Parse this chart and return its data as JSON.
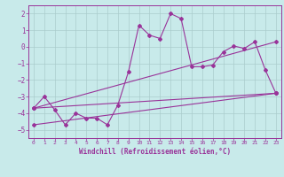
{
  "xlabel": "Windchill (Refroidissement éolien,°C)",
  "bg_color": "#c8eaea",
  "line_color": "#993399",
  "grid_color": "#aacccc",
  "xlim": [
    -0.5,
    23.5
  ],
  "ylim": [
    -5.5,
    2.5
  ],
  "yticks": [
    -5,
    -4,
    -3,
    -2,
    -1,
    0,
    1,
    2
  ],
  "xticks": [
    0,
    1,
    2,
    3,
    4,
    5,
    6,
    7,
    8,
    9,
    10,
    11,
    12,
    13,
    14,
    15,
    16,
    17,
    18,
    19,
    20,
    21,
    22,
    23
  ],
  "series1_x": [
    0,
    1,
    2,
    3,
    4,
    5,
    6,
    7,
    8,
    9,
    10,
    11,
    12,
    13,
    14,
    15,
    16,
    17,
    18,
    19,
    20,
    21,
    22,
    23
  ],
  "series1_y": [
    -3.7,
    -3.0,
    -3.8,
    -4.7,
    -4.0,
    -4.3,
    -4.3,
    -4.7,
    -3.5,
    -1.5,
    1.3,
    0.7,
    0.5,
    2.0,
    1.7,
    -1.2,
    -1.2,
    -1.1,
    -0.3,
    0.05,
    -0.1,
    0.3,
    -1.4,
    -2.8
  ],
  "series2_x": [
    0,
    23
  ],
  "series2_y": [
    -3.7,
    -2.8
  ],
  "series3_x": [
    0,
    23
  ],
  "series3_y": [
    -3.7,
    0.3
  ],
  "series4_x": [
    0,
    23
  ],
  "series4_y": [
    -4.7,
    -2.8
  ]
}
